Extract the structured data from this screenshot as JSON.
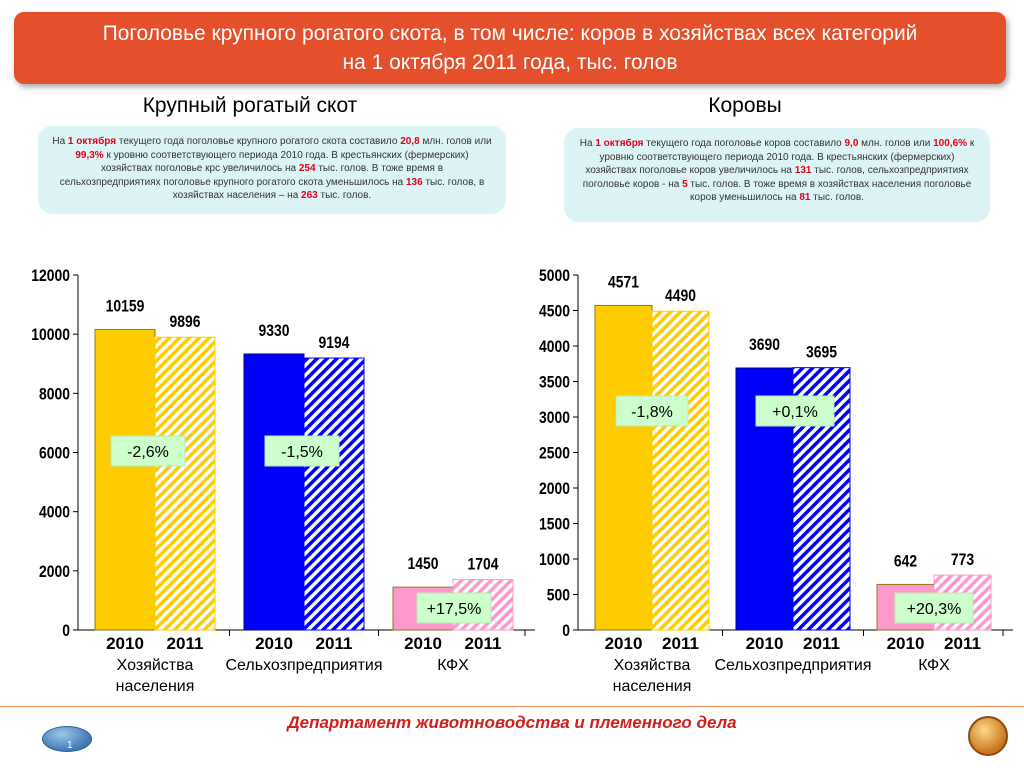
{
  "title": {
    "line1": "Поголовье крупного рогатого скота, в том числе: коров в хозяйствах всех категорий",
    "line2": "на 1 октября 2011 года, тыс. голов"
  },
  "left": {
    "heading": "Крупный рогатый скот",
    "info": {
      "t1": "На ",
      "r1": "1 октября",
      "t2": " текущего года поголовье крупного рогатого скота составило ",
      "r2": "20,8",
      "t3": " млн. голов или ",
      "r3": "99,3%",
      "t4": " к уровню соответствующего периода 2010 года.  В крестьянских (фермерских) хозяйствах поголовье крс увеличилось на ",
      "r4": "254",
      "t5": " тыс. голов.  В тоже время в сельхозпредприятиях поголовье крупного рогатого скота уменьшилось на ",
      "r5": "136",
      "t6": " тыс. голов, в хозяйствах населения – на ",
      "r6": "263",
      "t7": " тыс. голов."
    }
  },
  "right": {
    "heading": "Коровы",
    "info": {
      "t1": "На ",
      "r1": "1 октября",
      "t2": " текущего года поголовье коров составило ",
      "r2": "9,0",
      "t3": "  млн. голов или ",
      "r3": "100,6%",
      "t4": " к уровню соответствующего периода 2010 года.  В крестьянских (фермерских) хозяйствах поголовье коров увеличилось на ",
      "r4": "131",
      "t5": " тыс. голов, сельхозпредприятиях поголовье коров -  на ",
      "r5": "5",
      "t6": " тыс. голов. В тоже время в хозяйствах населения поголовье коров уменьшилось на ",
      "r6": "81",
      "t7": " тыс. голов."
    }
  },
  "chart_data": [
    {
      "type": "bar",
      "title": "Крупный рогатый скот",
      "years": [
        "2010",
        "2011"
      ],
      "categories": [
        "Хозяйства населения",
        "Сельхозпредприятия",
        "КФХ"
      ],
      "series": [
        {
          "name": "2010",
          "values": [
            10159,
            9330,
            1450
          ]
        },
        {
          "name": "2011",
          "values": [
            9896,
            9194,
            1704
          ]
        }
      ],
      "changes": [
        "-2,6%",
        "-1,5%",
        "+17,5%"
      ],
      "ylim": [
        0,
        12000
      ],
      "yticks": [
        0,
        2000,
        4000,
        6000,
        8000,
        10000,
        12000
      ],
      "colors": [
        "#ffcc00",
        "#0000ff",
        "#ff99cc"
      ]
    },
    {
      "type": "bar",
      "title": "Коровы",
      "years": [
        "2010",
        "2011"
      ],
      "categories": [
        "Хозяйства населения",
        "Сельхозпредприятия",
        "КФХ"
      ],
      "series": [
        {
          "name": "2010",
          "values": [
            4571,
            3690,
            642
          ]
        },
        {
          "name": "2011",
          "values": [
            4490,
            3695,
            773
          ]
        }
      ],
      "changes": [
        "-1,8%",
        "+0,1%",
        "+20,3%"
      ],
      "ylim": [
        0,
        5000
      ],
      "yticks": [
        0,
        500,
        1000,
        1500,
        2000,
        2500,
        3000,
        3500,
        4000,
        4500,
        5000
      ],
      "colors": [
        "#ffcc00",
        "#0000ff",
        "#ff99cc"
      ]
    }
  ],
  "footer": {
    "department": "Департамент животноводства и племенного дела",
    "page": "1\n1"
  }
}
